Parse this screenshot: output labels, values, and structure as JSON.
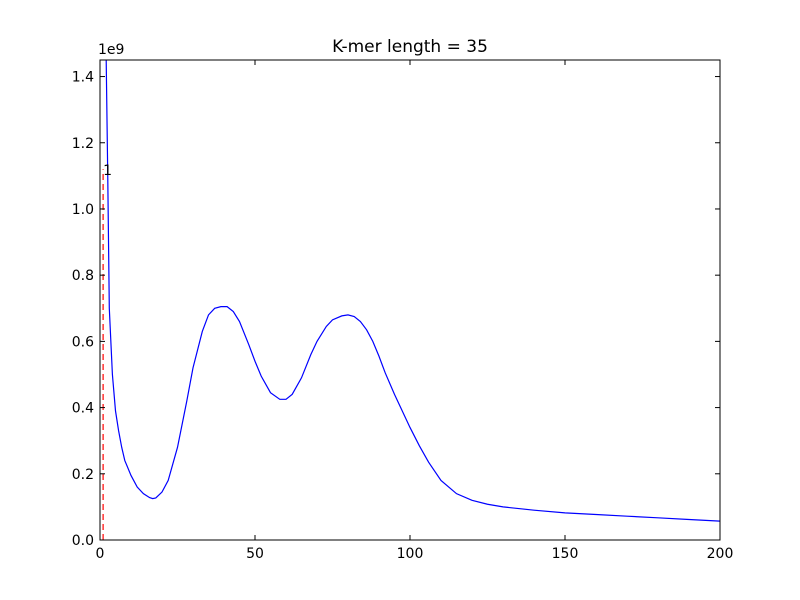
{
  "chart_data": {
    "type": "line",
    "title": "K-mer length = 35",
    "xlabel": "",
    "ylabel": "",
    "y_offset_label": "1e9",
    "xlim": [
      0,
      200
    ],
    "ylim": [
      0,
      1.45
    ],
    "x_ticks": [
      0,
      50,
      100,
      150,
      200
    ],
    "x_tick_labels": [
      "0",
      "50",
      "100",
      "150",
      "200"
    ],
    "y_ticks": [
      0.0,
      0.2,
      0.4,
      0.6,
      0.8,
      1.0,
      1.2,
      1.4
    ],
    "y_tick_labels": [
      "0.0",
      "0.2",
      "0.4",
      "0.6",
      "0.8",
      "1.0",
      "1.2",
      "1.4"
    ],
    "grid": false,
    "series": [
      {
        "color": "#0000ff",
        "style": "solid",
        "x": [
          2,
          2.5,
          3,
          4,
          5,
          6,
          7,
          8,
          10,
          12,
          14,
          16,
          17,
          18,
          20,
          22,
          25,
          28,
          30,
          33,
          35,
          37,
          39,
          41,
          43,
          45,
          48,
          50,
          52,
          55,
          58,
          60,
          62,
          65,
          68,
          70,
          73,
          75,
          78,
          80,
          82,
          84,
          86,
          88,
          90,
          92,
          95,
          98,
          100,
          103,
          106,
          110,
          115,
          120,
          125,
          130,
          140,
          150,
          160,
          170,
          180,
          190,
          200
        ],
        "y": [
          1.45,
          1.1,
          0.7,
          0.5,
          0.39,
          0.33,
          0.28,
          0.24,
          0.195,
          0.16,
          0.14,
          0.128,
          0.125,
          0.127,
          0.145,
          0.18,
          0.28,
          0.42,
          0.52,
          0.63,
          0.68,
          0.7,
          0.705,
          0.705,
          0.69,
          0.66,
          0.59,
          0.54,
          0.495,
          0.445,
          0.425,
          0.425,
          0.44,
          0.49,
          0.56,
          0.6,
          0.645,
          0.665,
          0.677,
          0.68,
          0.675,
          0.66,
          0.635,
          0.6,
          0.555,
          0.505,
          0.44,
          0.38,
          0.34,
          0.285,
          0.235,
          0.18,
          0.14,
          0.12,
          0.108,
          0.1,
          0.09,
          0.082,
          0.077,
          0.072,
          0.067,
          0.062,
          0.057
        ]
      }
    ],
    "annotations": [
      {
        "label": "1",
        "x": 1,
        "color": "#ff0000",
        "style": "dashed",
        "y_top": 1.12
      }
    ]
  }
}
